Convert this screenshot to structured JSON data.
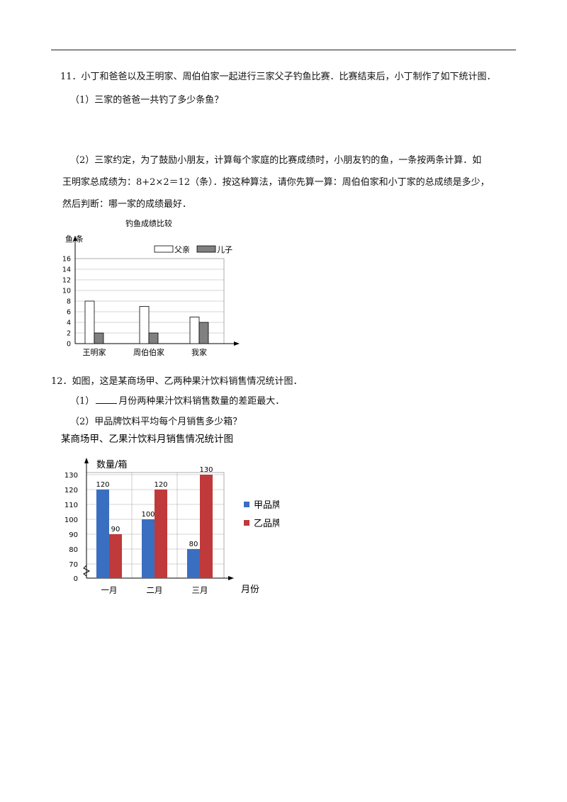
{
  "q11": {
    "intro": "11．小丁和爸爸以及王明家、周伯伯家一起进行三家父子钓鱼比赛．比赛结束后，小丁制作了如下统计图．",
    "part1": "（1）三家的爸爸一共钓了多少条鱼？",
    "part2_line1": "（2）三家约定，为了鼓励小朋友，计算每个家庭的比赛成绩时，小朋友钓的鱼，一条按两条计算．如",
    "part2_line2": "王明家总成绩为：8+2×2＝12（条）．按这种算法，请你先算一算：周伯伯家和小丁家的总成绩是多少，",
    "part2_line3": "然后判断：哪一家的成绩最好．"
  },
  "q12": {
    "intro": "12．如图，这是某商场甲、乙两种果汁饮料销售情况统计图．",
    "part1_prefix": "（1）",
    "part1_suffix": "月份两种果汁饮料销售数量的差距最大．",
    "part2": "（2）甲品牌饮料平均每个月销售多少箱？"
  },
  "chart_data": [
    {
      "type": "bar",
      "title": "钓鱼成绩比较",
      "ylabel": "鱼/条",
      "categories": [
        "王明家",
        "周伯伯家",
        "我家"
      ],
      "yticks": [
        "0",
        "2",
        "4",
        "6",
        "8",
        "10",
        "12",
        "14",
        "16"
      ],
      "ylim": [
        0,
        16
      ],
      "series": [
        {
          "name": "父亲",
          "values": [
            8,
            7,
            5
          ],
          "color": "#ffffff"
        },
        {
          "name": "儿子",
          "values": [
            2,
            2,
            4
          ],
          "color": "#808080"
        }
      ],
      "legend": "top-right",
      "grid": true
    },
    {
      "type": "bar",
      "title": "某商场甲、乙果汁饮料月销售情况统计图",
      "ylabel": "数量/箱",
      "xlabel": "月份",
      "categories": [
        "一月",
        "二月",
        "三月"
      ],
      "yticks": [
        "0",
        "70",
        "80",
        "90",
        "100",
        "110",
        "120",
        "130"
      ],
      "ylim": [
        60,
        130
      ],
      "axis_break": true,
      "series": [
        {
          "name": "甲品牌",
          "values": [
            120,
            100,
            80
          ],
          "color": "#3a6ec0"
        },
        {
          "name": "乙品牌",
          "values": [
            90,
            120,
            130
          ],
          "color": "#c0393b"
        }
      ],
      "legend": "right",
      "grid": true
    }
  ]
}
